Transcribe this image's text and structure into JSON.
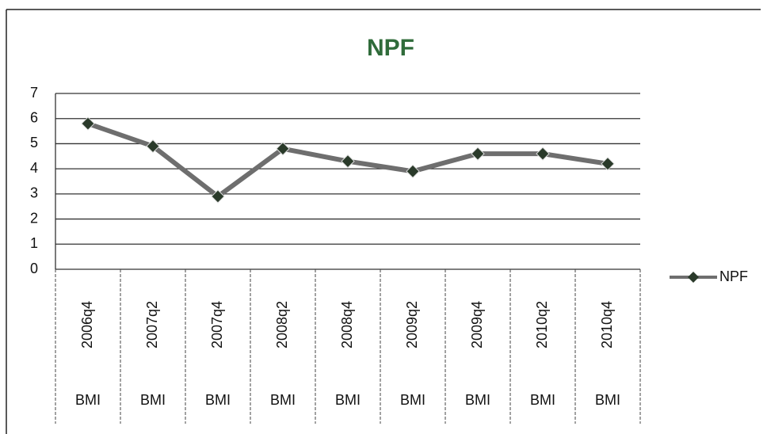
{
  "chart_data": {
    "type": "line",
    "title": "NPF",
    "categories": [
      "2006q4",
      "2007q2",
      "2007q4",
      "2008q2",
      "2008q4",
      "2009q2",
      "2009q4",
      "2010q2",
      "2010q4"
    ],
    "category_groups": [
      "BMI",
      "BMI",
      "BMI",
      "BMI",
      "BMI",
      "BMI",
      "BMI",
      "BMI",
      "BMI"
    ],
    "series": [
      {
        "name": "NPF",
        "color": "#6e6e6e",
        "values": [
          5.8,
          4.9,
          2.9,
          4.8,
          4.3,
          3.9,
          4.6,
          4.6,
          4.2
        ]
      }
    ],
    "ylim": [
      0,
      7
    ],
    "yticks": [
      0,
      1,
      2,
      3,
      4,
      5,
      6,
      7
    ],
    "grid": true,
    "legend": "right"
  }
}
